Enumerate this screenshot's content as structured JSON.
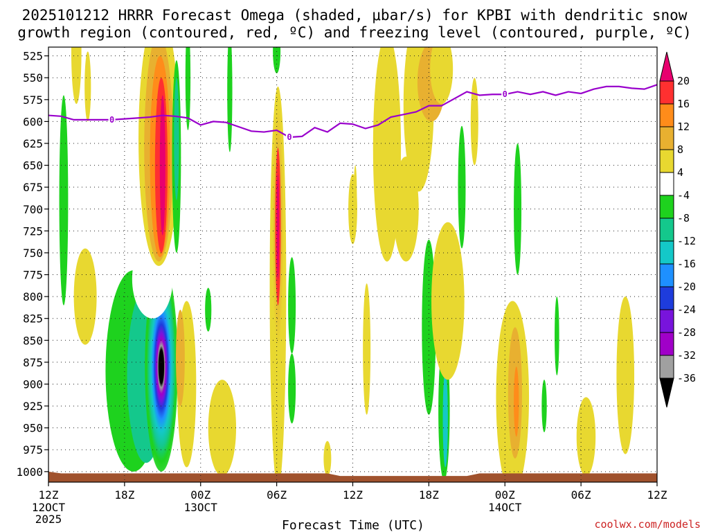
{
  "chart_data": {
    "type": "heatmap",
    "title_line1": "2025101212 HRRR Forecast Omega (shaded, μbar/s) for KPBI with dendritic snow",
    "title_line2": "growth region (contoured, red, ºC) and freezing level (contoured, purple, ºC)",
    "xlabel": "Forecast Time (UTC)",
    "ylabel": "",
    "credit": "coolwx.com/models",
    "x_range_hours": [
      0,
      48
    ],
    "y_range_hpa": [
      1012,
      515
    ],
    "y_ticks": [
      "525",
      "550",
      "575",
      "600",
      "625",
      "650",
      "675",
      "700",
      "725",
      "750",
      "775",
      "800",
      "825",
      "850",
      "875",
      "900",
      "925",
      "950",
      "975",
      "1000"
    ],
    "y_tick_values": [
      525,
      550,
      575,
      600,
      625,
      650,
      675,
      700,
      725,
      750,
      775,
      800,
      825,
      850,
      875,
      900,
      925,
      950,
      975,
      1000
    ],
    "x_ticks": [
      {
        "hour": 0,
        "label": "12Z",
        "sub": "12OCT",
        "sub2": "2025"
      },
      {
        "hour": 6,
        "label": "18Z",
        "sub": "",
        "sub2": ""
      },
      {
        "hour": 12,
        "label": "00Z",
        "sub": "13OCT",
        "sub2": ""
      },
      {
        "hour": 18,
        "label": "06Z",
        "sub": "",
        "sub2": ""
      },
      {
        "hour": 24,
        "label": "12Z",
        "sub": "",
        "sub2": ""
      },
      {
        "hour": 30,
        "label": "18Z",
        "sub": "",
        "sub2": ""
      },
      {
        "hour": 36,
        "label": "00Z",
        "sub": "14OCT",
        "sub2": ""
      },
      {
        "hour": 42,
        "label": "06Z",
        "sub": "",
        "sub2": ""
      },
      {
        "hour": 48,
        "label": "12Z",
        "sub": "",
        "sub2": ""
      }
    ],
    "colorbar": {
      "labels": [
        "20",
        "16",
        "12",
        "8",
        "4",
        "-4",
        "-8",
        "-12",
        "-16",
        "-20",
        "-24",
        "-28",
        "-32",
        "-36"
      ],
      "colors": [
        "#e8006e",
        "#ff3030",
        "#ff8c1a",
        "#e8b030",
        "#e8d830",
        "#ffffff",
        "#1ed21e",
        "#14c88c",
        "#14c8c8",
        "#1e90ff",
        "#1e3cdc",
        "#7814dc",
        "#a000c8",
        "#a0a0a0",
        "#000000"
      ]
    },
    "freezing_level": {
      "label": "0",
      "color": "#9900cc",
      "hours": [
        0,
        1,
        2,
        3,
        4,
        5,
        6,
        7,
        8,
        9,
        10,
        11,
        12,
        13,
        14,
        15,
        16,
        17,
        18,
        19,
        20,
        21,
        22,
        23,
        24,
        25,
        26,
        27,
        28,
        29,
        30,
        31,
        32,
        33,
        34,
        35,
        36,
        37,
        38,
        39,
        40,
        41,
        42,
        43,
        44,
        45,
        46,
        47,
        48
      ],
      "hpa": [
        593,
        594,
        598,
        598,
        598,
        598,
        597,
        596,
        595,
        593,
        594,
        596,
        604,
        600,
        601,
        606,
        611,
        612,
        610,
        618,
        617,
        607,
        612,
        602,
        603,
        608,
        604,
        595,
        592,
        589,
        582,
        582,
        574,
        566,
        570,
        569,
        569,
        566,
        569,
        566,
        570,
        566,
        568,
        563,
        560,
        560,
        562,
        563,
        558
      ]
    },
    "omega_features": [
      {
        "hour": 8.2,
        "hpa": 880,
        "peak": -36,
        "desc": "strong ascent max"
      },
      {
        "hour": 18.0,
        "hpa": 700,
        "peak": 20,
        "desc": "descent max"
      },
      {
        "hour": 8.8,
        "hpa": 620,
        "peak": 20,
        "desc": "upper descent max"
      },
      {
        "hour": 36.8,
        "hpa": 920,
        "peak": 14,
        "desc": "late low-level max"
      }
    ]
  }
}
